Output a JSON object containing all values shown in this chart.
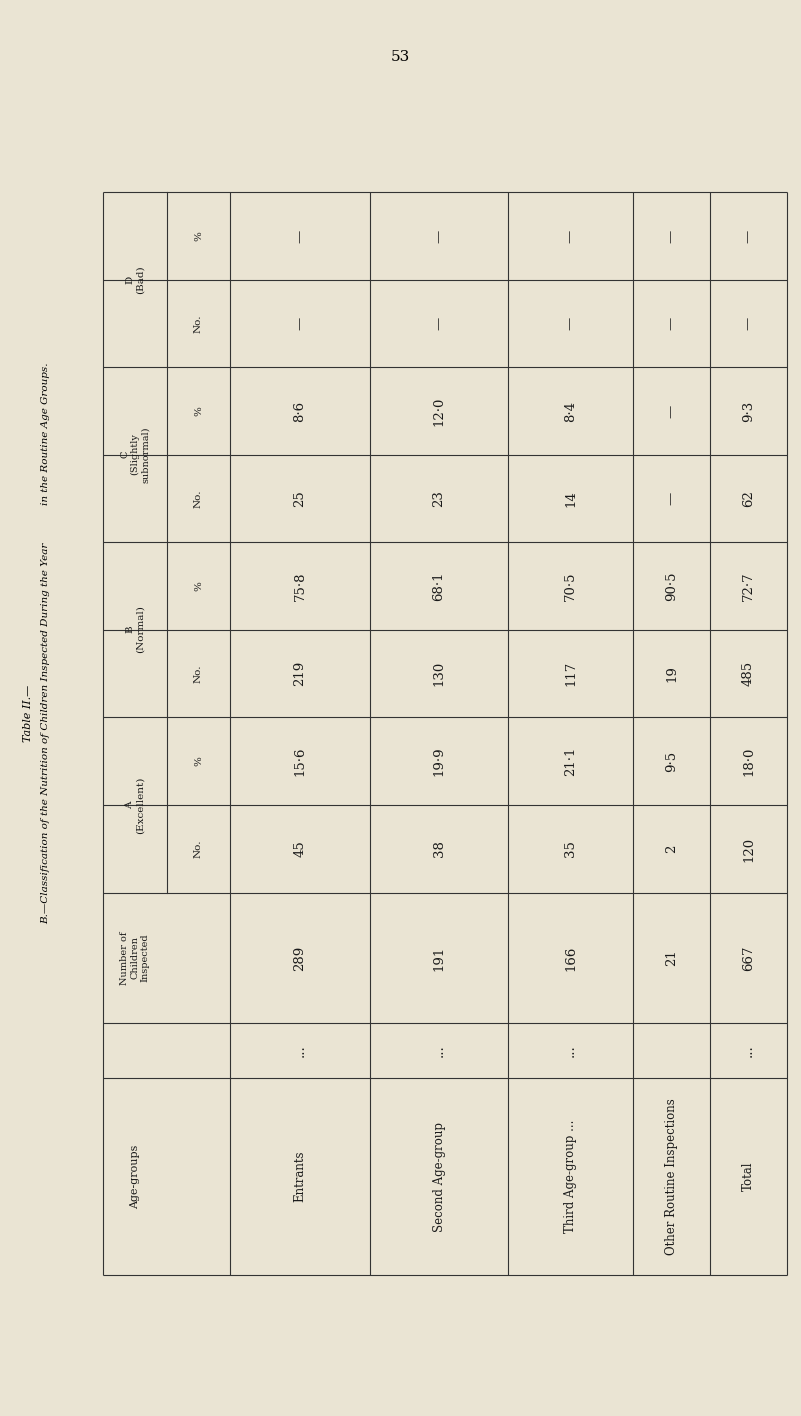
{
  "page_number": "53",
  "bg_color": "#EAE4D3",
  "title1": "Table II.—",
  "title2": "B.—Classification of the Nutrition of Children Inspected During the Year",
  "title3": "in the Routine Age Groups.",
  "row_labels": [
    "Age-groups",
    "Entrants",
    "Second Age-group",
    "Third Age-group ...",
    "Other Routine Inspections",
    "Total"
  ],
  "row_dots": [
    "",
    "...",
    "...",
    "...",
    "",
    "..."
  ],
  "num_inspected": [
    "",
    "289",
    "191",
    "166",
    "21",
    "667"
  ],
  "A_no": [
    "No.",
    "45",
    "38",
    "35",
    "2",
    "120"
  ],
  "A_pct": [
    "%",
    "15·6",
    "19·9",
    "21·1",
    "9·5",
    "18·0"
  ],
  "B_no": [
    "No.",
    "219",
    "130",
    "117",
    "19",
    "485"
  ],
  "B_pct": [
    "%",
    "75·8",
    "68·1",
    "70·5",
    "90·5",
    "72·7"
  ],
  "C_no": [
    "No.",
    "25",
    "23",
    "14",
    "—",
    "62"
  ],
  "C_pct": [
    "%",
    "8·6",
    "12·0",
    "8·4",
    "—",
    "9·3"
  ],
  "D_no": [
    "No.",
    "—",
    "—",
    "—",
    "—",
    "—"
  ],
  "D_pct": [
    "%",
    "—",
    "—",
    "—",
    "—",
    "—"
  ],
  "n_data_rows": 6,
  "text_color": "#1a1a1a"
}
